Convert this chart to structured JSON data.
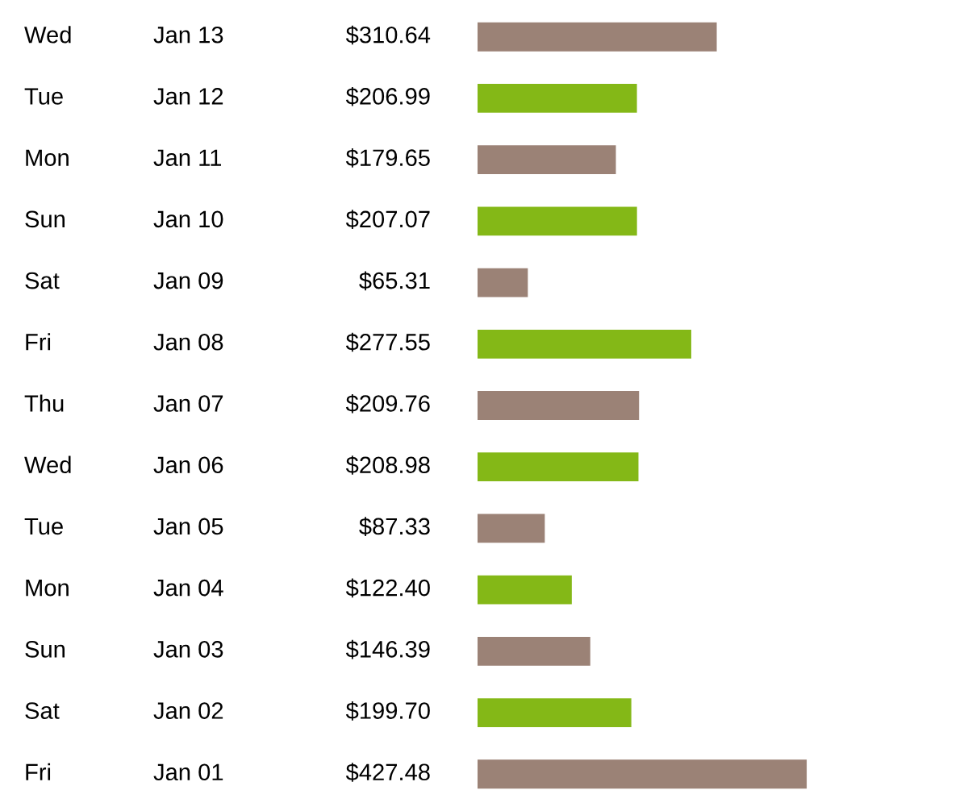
{
  "chart_data": {
    "type": "bar",
    "orientation": "horizontal",
    "categories": [
      "Wed Jan 13",
      "Tue Jan 12",
      "Mon Jan 11",
      "Sun Jan 10",
      "Sat Jan 09",
      "Fri Jan 08",
      "Thu Jan 07",
      "Wed Jan 06",
      "Tue Jan 05",
      "Mon Jan 04",
      "Sun Jan 03",
      "Sat Jan 02",
      "Fri Jan 01"
    ],
    "values": [
      310.64,
      206.99,
      179.65,
      207.07,
      65.31,
      277.55,
      209.76,
      208.98,
      87.33,
      122.4,
      146.39,
      199.7,
      427.48
    ],
    "value_labels": [
      "$310.64",
      "$206.99",
      "$179.65",
      "$207.07",
      "$65.31",
      "$277.55",
      "$209.76",
      "$208.98",
      "$87.33",
      "$122.40",
      "$146.39",
      "$199.70",
      "$427.48"
    ],
    "colors": [
      "#9b8276",
      "#84b817",
      "#9b8276",
      "#84b817",
      "#9b8276",
      "#84b817",
      "#9b8276",
      "#84b817",
      "#9b8276",
      "#84b817",
      "#9b8276",
      "#84b817",
      "#9b8276"
    ]
  }
}
